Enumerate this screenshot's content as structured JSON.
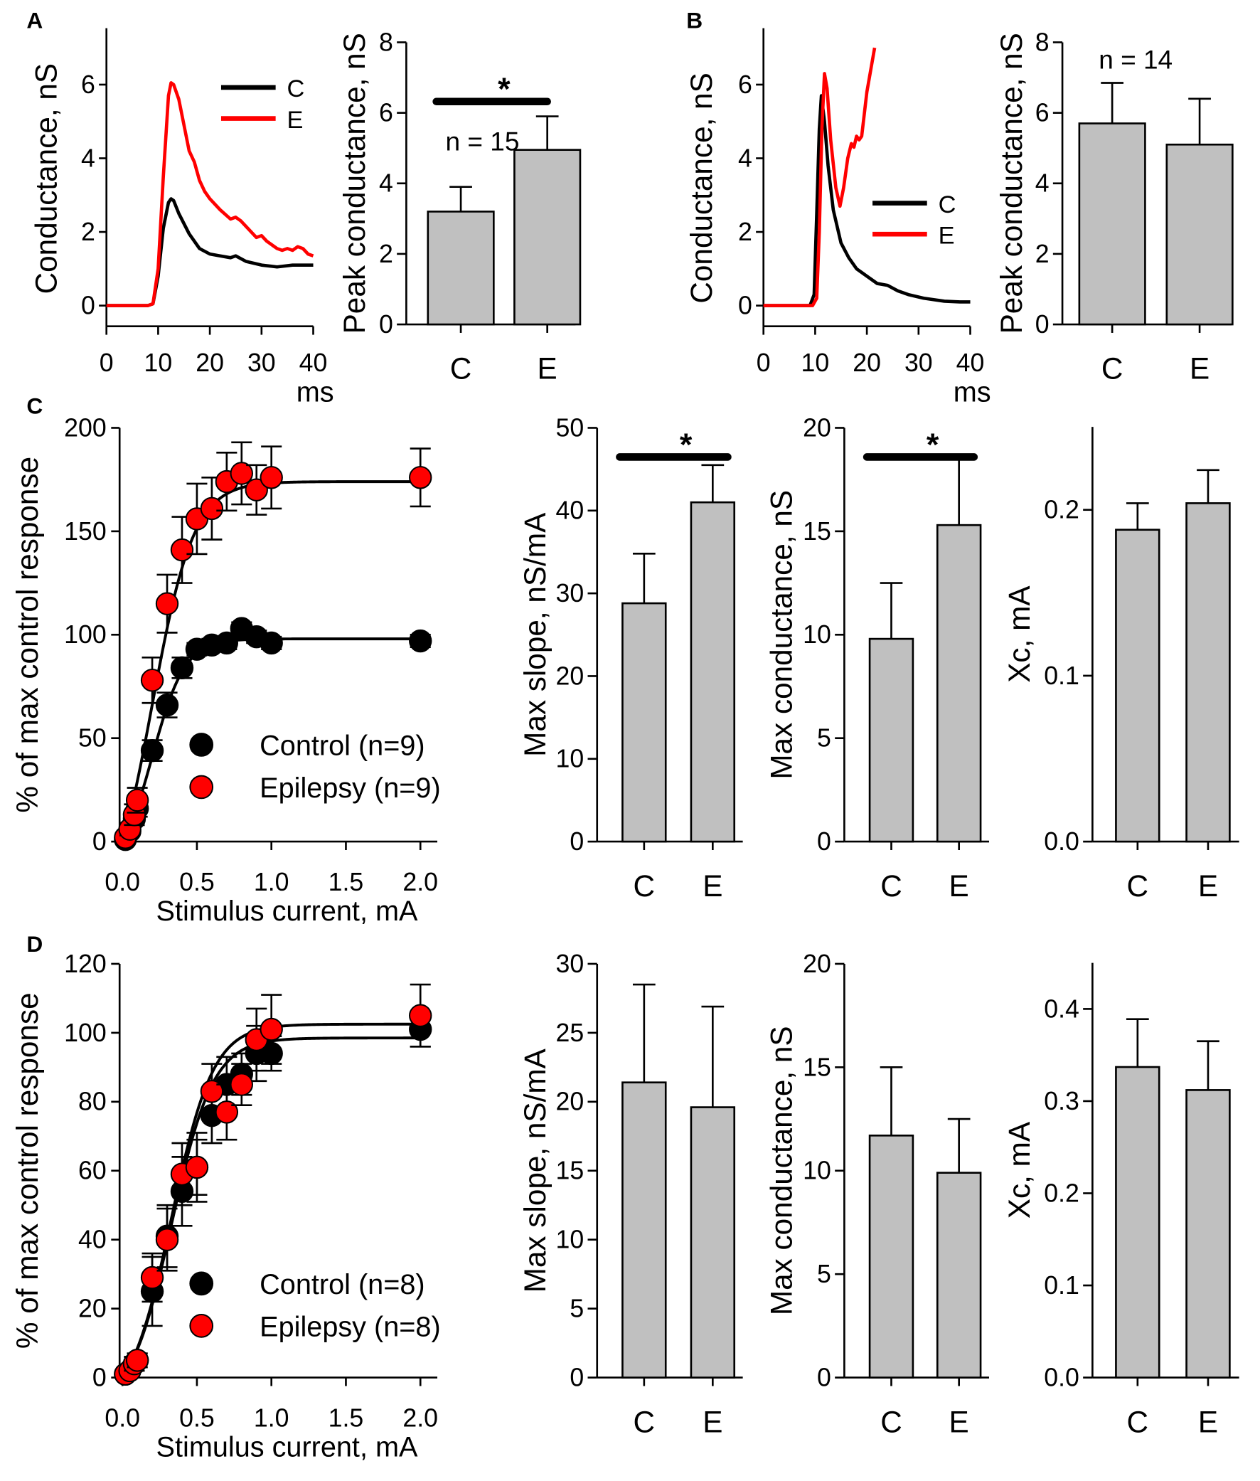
{
  "colors": {
    "control": "#000000",
    "epilepsy": "#ff0000",
    "bar": "#c0c0c0"
  },
  "panel_labels": [
    "A",
    "B",
    "C",
    "D"
  ],
  "chart_data": [
    {
      "id": "A-trace",
      "type": "line",
      "panel": "A",
      "xlabel": "ms",
      "ylabel": "Conductance, nS",
      "xlim": [
        0,
        40
      ],
      "ylim": [
        -0.5,
        7.2
      ],
      "xticks": [
        0,
        10,
        20,
        30,
        40
      ],
      "yticks": [
        0,
        2,
        4,
        6
      ],
      "legend": [
        "C",
        "E"
      ],
      "legend_position": "top-right",
      "series": [
        {
          "name": "C",
          "x": [
            0,
            8,
            9,
            10,
            11,
            12,
            12.5,
            13,
            14,
            16,
            18,
            20,
            22,
            24,
            25,
            27,
            30,
            33,
            36,
            38,
            40
          ],
          "y": [
            0,
            0,
            0.05,
            0.8,
            2.1,
            2.8,
            2.9,
            2.85,
            2.5,
            1.95,
            1.55,
            1.4,
            1.35,
            1.3,
            1.35,
            1.2,
            1.1,
            1.05,
            1.1,
            1.1,
            1.1
          ]
        },
        {
          "name": "E",
          "x": [
            0,
            8,
            9,
            10,
            11,
            12,
            12.5,
            13,
            14,
            15,
            16,
            17,
            18,
            19,
            20,
            22,
            24,
            25,
            26,
            28,
            29,
            30,
            31,
            33,
            34,
            35,
            36,
            37,
            38,
            39,
            40
          ],
          "y": [
            0,
            0,
            0.05,
            1,
            3.5,
            5.7,
            6.05,
            6.0,
            5.6,
            4.9,
            4.2,
            3.9,
            3.4,
            3.1,
            2.9,
            2.6,
            2.35,
            2.4,
            2.3,
            2.0,
            1.85,
            1.9,
            1.75,
            1.55,
            1.5,
            1.55,
            1.5,
            1.6,
            1.55,
            1.4,
            1.35
          ]
        }
      ]
    },
    {
      "id": "A-bar",
      "type": "bar",
      "panel": "A",
      "ylabel": "Peak conductance, nS",
      "ylim": [
        0,
        8
      ],
      "yticks": [
        0,
        2,
        4,
        6,
        8
      ],
      "categories": [
        "C",
        "E"
      ],
      "values": [
        3.2,
        4.95
      ],
      "errors": [
        0.7,
        0.95
      ],
      "annotation": "n = 15",
      "significance": "*"
    },
    {
      "id": "B-trace",
      "type": "line",
      "panel": "B",
      "xlabel": "ms",
      "ylabel": "Conductance, nS",
      "xlim": [
        0,
        40
      ],
      "ylim": [
        -0.5,
        7.2
      ],
      "xticks": [
        0,
        10,
        20,
        30,
        40
      ],
      "yticks": [
        0,
        2,
        4,
        6
      ],
      "legend": [
        "C",
        "E"
      ],
      "legend_position": "center-right",
      "series": [
        {
          "name": "C",
          "x": [
            0,
            9,
            9.8,
            10.3,
            10.8,
            11.2,
            11.8,
            12.5,
            13.5,
            15,
            16.5,
            18,
            20,
            22,
            24,
            26,
            28,
            31,
            35,
            38,
            40
          ],
          "y": [
            0,
            0,
            0.3,
            2.5,
            4.8,
            5.7,
            5.0,
            3.8,
            2.6,
            1.7,
            1.3,
            1.0,
            0.8,
            0.6,
            0.55,
            0.4,
            0.3,
            0.2,
            0.12,
            0.1,
            0.1
          ]
        },
        {
          "name": "E",
          "x": [
            0,
            9.5,
            10.3,
            10.8,
            11.3,
            11.8,
            12.3,
            13,
            14,
            14.8,
            15.5,
            16.3,
            17,
            17.5,
            18,
            18.5,
            19,
            19.5,
            20,
            20.5,
            21,
            21.5
          ],
          "y": [
            0,
            0,
            0.2,
            2.0,
            4.8,
            6.3,
            5.9,
            4.5,
            3.2,
            2.7,
            3.2,
            4.0,
            4.4,
            4.3,
            4.6,
            4.5,
            4.6,
            5.2,
            5.8,
            6.2,
            6.6,
            7.0
          ]
        }
      ]
    },
    {
      "id": "B-bar",
      "type": "bar",
      "panel": "B",
      "ylabel": "Peak conductance, nS",
      "ylim": [
        0,
        8
      ],
      "yticks": [
        0,
        2,
        4,
        6,
        8
      ],
      "categories": [
        "C",
        "E"
      ],
      "values": [
        5.7,
        5.1
      ],
      "errors": [
        1.15,
        1.3
      ],
      "annotation": "n = 14",
      "significance": ""
    },
    {
      "id": "C-scatter",
      "type": "scatter",
      "panel": "C",
      "xlabel": "Stimulus current, mA",
      "ylabel": "% of max control response",
      "xlim": [
        0,
        2.1
      ],
      "ylim": [
        0,
        200
      ],
      "xticks": [
        "0.0",
        "0.5",
        "1.0",
        "1.5",
        "2.0"
      ],
      "yticks": [
        0,
        50,
        100,
        150,
        200
      ],
      "legend_position": "bottom-right",
      "series": [
        {
          "name": "Control (n=9)",
          "x": [
            0.02,
            0.05,
            0.08,
            0.1,
            0.2,
            0.3,
            0.4,
            0.5,
            0.6,
            0.7,
            0.8,
            0.9,
            1.0,
            2.0
          ],
          "y": [
            1,
            5,
            11,
            16,
            44,
            66,
            84,
            93,
            95,
            96,
            103,
            99,
            96,
            97
          ],
          "err": [
            1,
            2,
            3,
            4,
            5,
            6,
            5,
            3,
            3,
            3,
            3,
            3,
            3,
            3
          ],
          "fit": {
            "plateau": 98,
            "xhalf": 0.2,
            "slope": 0.11
          }
        },
        {
          "name": "Epilepsy (n=9)",
          "x": [
            0.02,
            0.05,
            0.08,
            0.1,
            0.2,
            0.3,
            0.4,
            0.5,
            0.6,
            0.7,
            0.8,
            0.9,
            1.0,
            2.0
          ],
          "y": [
            2,
            6,
            13,
            20,
            78,
            115,
            141,
            156,
            161,
            174,
            178,
            170,
            176,
            176
          ],
          "err": [
            2,
            3,
            5,
            6,
            11,
            14,
            16,
            17,
            15,
            14,
            15,
            12,
            15,
            14
          ],
          "fit": {
            "plateau": 174,
            "xhalf": 0.2,
            "slope": 0.14
          }
        }
      ]
    },
    {
      "id": "C-slope",
      "type": "bar",
      "panel": "C",
      "ylabel": "Max slope, nS/mA",
      "ylim": [
        0,
        50
      ],
      "yticks": [
        0,
        10,
        20,
        30,
        40,
        50
      ],
      "categories": [
        "C",
        "E"
      ],
      "values": [
        28.8,
        41
      ],
      "errors": [
        6,
        4.5
      ],
      "significance": "*"
    },
    {
      "id": "C-cond",
      "type": "bar",
      "panel": "C",
      "ylabel": "Max conductance, nS",
      "ylim": [
        0,
        20
      ],
      "yticks": [
        0,
        5,
        10,
        15,
        20
      ],
      "categories": [
        "C",
        "E"
      ],
      "values": [
        9.8,
        15.3
      ],
      "errors": [
        2.7,
        3.4
      ],
      "significance": "*"
    },
    {
      "id": "C-xc",
      "type": "bar",
      "panel": "C",
      "ylabel": "Xc, mA",
      "ylim": [
        0,
        0.25
      ],
      "yticks": [
        "0.0",
        "0.1",
        "0.2"
      ],
      "categories": [
        "C",
        "E"
      ],
      "values": [
        0.188,
        0.204
      ],
      "errors": [
        0.016,
        0.02
      ],
      "significance": ""
    },
    {
      "id": "D-scatter",
      "type": "scatter",
      "panel": "D",
      "xlabel": "Stimulus current, mA",
      "ylabel": "% of max control response",
      "xlim": [
        0,
        2.1
      ],
      "ylim": [
        0,
        120
      ],
      "xticks": [
        "0.0",
        "0.5",
        "1.0",
        "1.5",
        "2.0"
      ],
      "yticks": [
        0,
        20,
        40,
        60,
        80,
        100,
        120
      ],
      "legend_position": "bottom-right",
      "series": [
        {
          "name": "Control (n=8)",
          "x": [
            0.02,
            0.05,
            0.08,
            0.1,
            0.2,
            0.3,
            0.4,
            0.5,
            0.6,
            0.7,
            0.8,
            0.9,
            1.0,
            2.0
          ],
          "y": [
            1,
            2,
            4,
            5,
            25,
            41,
            54,
            61,
            76,
            85,
            88,
            94,
            94,
            101
          ],
          "err": [
            1,
            1,
            2,
            2,
            10,
            9,
            10,
            10,
            8,
            8,
            6,
            8,
            5,
            5
          ],
          "fit": {
            "plateau": 98.5,
            "xhalf": 0.33,
            "slope": 0.14
          }
        },
        {
          "name": "Epilepsy (n=8)",
          "x": [
            0.02,
            0.05,
            0.08,
            0.1,
            0.2,
            0.3,
            0.4,
            0.5,
            0.6,
            0.7,
            0.8,
            0.9,
            1.0,
            2.0
          ],
          "y": [
            1,
            2,
            4,
            5,
            29,
            40,
            59,
            61,
            83,
            77,
            85,
            98,
            101,
            105
          ],
          "err": [
            1,
            1,
            2,
            2,
            7,
            9,
            9,
            8,
            8,
            8,
            6,
            9,
            10,
            9
          ],
          "fit": {
            "plateau": 102.5,
            "xhalf": 0.33,
            "slope": 0.14
          }
        }
      ]
    },
    {
      "id": "D-slope",
      "type": "bar",
      "panel": "D",
      "ylabel": "Max slope, nS/mA",
      "ylim": [
        0,
        30
      ],
      "yticks": [
        0,
        5,
        10,
        15,
        20,
        25,
        30
      ],
      "categories": [
        "C",
        "E"
      ],
      "values": [
        21.4,
        19.6
      ],
      "errors": [
        7.1,
        7.3
      ],
      "significance": ""
    },
    {
      "id": "D-cond",
      "type": "bar",
      "panel": "D",
      "ylabel": "Max conductance, nS",
      "ylim": [
        0,
        20
      ],
      "yticks": [
        0,
        5,
        10,
        15,
        20
      ],
      "categories": [
        "C",
        "E"
      ],
      "values": [
        11.7,
        9.9
      ],
      "errors": [
        3.3,
        2.6
      ],
      "significance": ""
    },
    {
      "id": "D-xc",
      "type": "bar",
      "panel": "D",
      "ylabel": "Xc, mA",
      "ylim": [
        0,
        0.45
      ],
      "yticks": [
        "0.0",
        "0.1",
        "0.2",
        "0.3",
        "0.4"
      ],
      "categories": [
        "C",
        "E"
      ],
      "values": [
        0.337,
        0.312
      ],
      "errors": [
        0.052,
        0.053
      ],
      "significance": ""
    }
  ]
}
